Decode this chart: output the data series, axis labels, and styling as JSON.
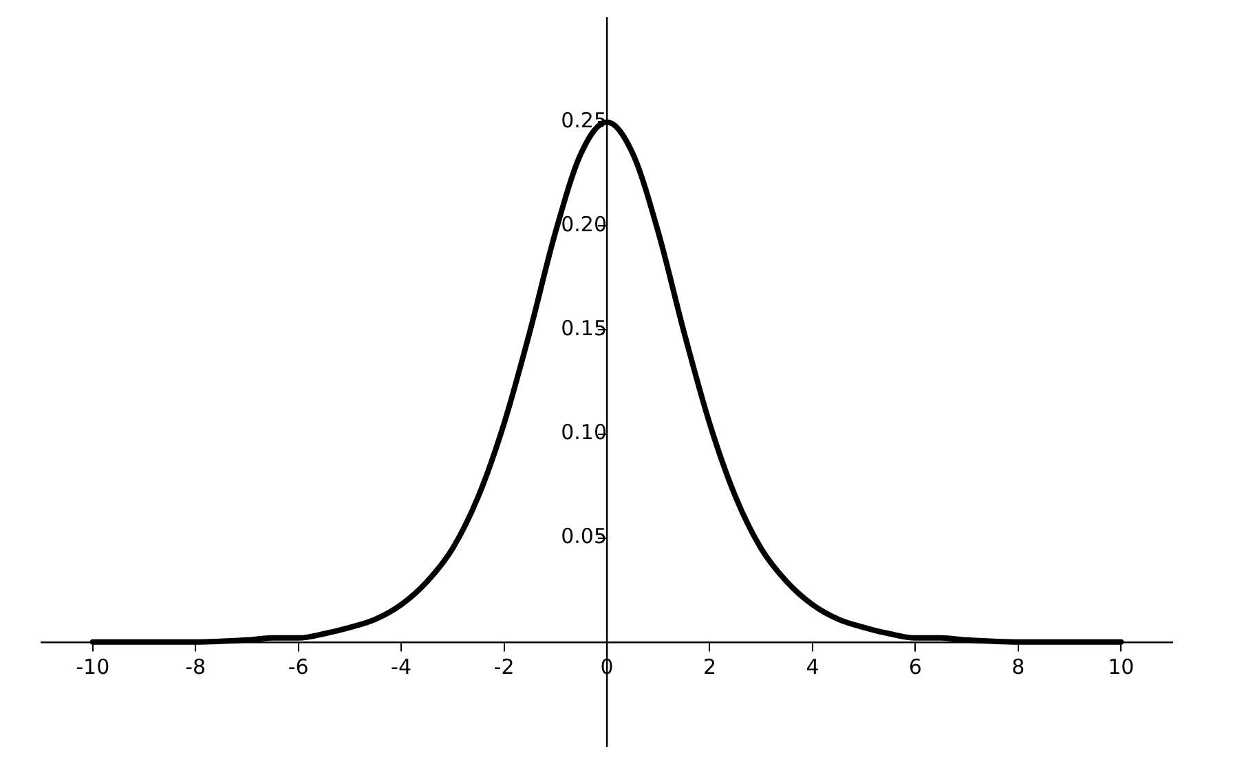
{
  "chart_data": {
    "type": "line",
    "x": [
      -10,
      -9,
      -8,
      -7,
      -6.5,
      -6,
      -5.5,
      -5,
      -4.5,
      -4,
      -3.5,
      -3,
      -2.5,
      -2,
      -1.5,
      -1,
      -0.5,
      0,
      0.5,
      1,
      1.5,
      2,
      2.5,
      3,
      3.5,
      4,
      4.5,
      5,
      5.5,
      6,
      6.5,
      7,
      8,
      9,
      10
    ],
    "series": [
      {
        "color": "#000000",
        "values": [
          0.0,
          0.0,
          0.0,
          0.001,
          0.002,
          0.002,
          0.004,
          0.007,
          0.011,
          0.018,
          0.029,
          0.045,
          0.07,
          0.105,
          0.149,
          0.197,
          0.235,
          0.25,
          0.235,
          0.197,
          0.149,
          0.105,
          0.07,
          0.045,
          0.029,
          0.018,
          0.011,
          0.007,
          0.004,
          0.002,
          0.002,
          0.001,
          0.0,
          0.0,
          0.0
        ]
      }
    ],
    "xlim": [
      -11,
      11
    ],
    "xticks": [
      -10,
      -8,
      -6,
      -4,
      -2,
      0,
      2,
      4,
      6,
      8,
      10
    ],
    "ylim": [
      -0.05,
      0.3
    ],
    "yticks": [
      {
        "value": 0.05,
        "label": "0.05"
      },
      {
        "value": 0.1,
        "label": "0.10"
      },
      {
        "value": 0.15,
        "label": "0.15"
      },
      {
        "value": 0.2,
        "label": "0.20"
      },
      {
        "value": 0.25,
        "label": "0.25"
      }
    ],
    "grid": false,
    "legend": false,
    "marker": "none",
    "line_style": "solid"
  }
}
